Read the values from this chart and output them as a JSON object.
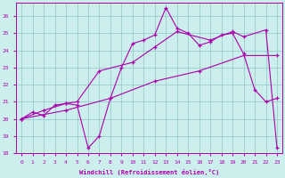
{
  "xlabel": "Windchill (Refroidissement éolien,°C)",
  "bg_color": "#cceeed",
  "line_color": "#aa00aa",
  "grid_color": "#99cccc",
  "xlim": [
    -0.5,
    23.5
  ],
  "ylim": [
    18,
    26.8
  ],
  "yticks": [
    18,
    19,
    20,
    21,
    22,
    23,
    24,
    25,
    26
  ],
  "xticks": [
    0,
    1,
    2,
    3,
    4,
    5,
    6,
    7,
    8,
    9,
    10,
    11,
    12,
    13,
    14,
    15,
    16,
    17,
    18,
    19,
    20,
    21,
    22,
    23
  ],
  "series1_x": [
    0,
    1,
    2,
    3,
    4,
    5,
    6,
    7,
    8,
    9,
    10,
    11,
    12,
    13,
    14,
    15,
    16,
    17,
    18,
    19,
    20,
    21,
    22,
    23
  ],
  "series1_y": [
    20.0,
    20.4,
    20.2,
    20.8,
    20.9,
    20.8,
    18.3,
    19.0,
    21.2,
    23.0,
    24.4,
    24.6,
    24.9,
    26.5,
    25.3,
    25.0,
    24.3,
    24.5,
    24.9,
    25.0,
    23.8,
    21.7,
    21.0,
    21.2
  ],
  "series2_x": [
    0,
    2,
    4,
    5,
    7,
    10,
    12,
    14,
    17,
    19,
    20,
    22,
    23
  ],
  "series2_y": [
    20.0,
    20.5,
    20.9,
    21.0,
    22.8,
    23.3,
    24.2,
    25.1,
    24.6,
    25.1,
    24.8,
    25.2,
    18.3
  ],
  "series3_x": [
    0,
    4,
    8,
    12,
    16,
    20,
    23
  ],
  "series3_y": [
    20.0,
    20.5,
    21.2,
    22.2,
    22.8,
    23.7,
    23.7
  ]
}
